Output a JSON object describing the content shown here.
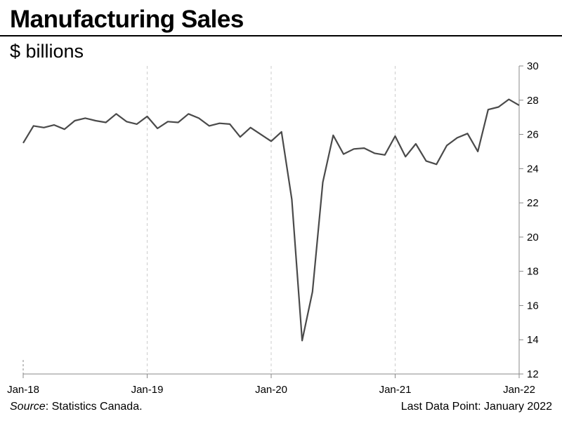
{
  "header": {
    "title": "Manufacturing Sales",
    "subtitle": "$ billions"
  },
  "footer": {
    "source_label": "Source",
    "source_rest": ": Statistics Canada.",
    "last_data_point": "Last Data Point: January 2022"
  },
  "colors": {
    "line": "#4a4a4a",
    "grid": "#cccccc",
    "axis": "#888888"
  },
  "chart_data": {
    "type": "line",
    "title": "Manufacturing Sales",
    "ylabel": "$ billions",
    "xlabel": "",
    "ylim": [
      12,
      30
    ],
    "yticks": [
      12,
      14,
      16,
      18,
      20,
      22,
      24,
      26,
      28,
      30
    ],
    "x_tick_labels": [
      "Jan-18",
      "Jan-19",
      "Jan-20",
      "Jan-21",
      "Jan-22"
    ],
    "x_tick_indices": [
      0,
      12,
      24,
      36,
      48
    ],
    "grid": "vertical dashed at year ticks",
    "series": [
      {
        "name": "Manufacturing Sales",
        "x": [
          "2018-01",
          "2018-02",
          "2018-03",
          "2018-04",
          "2018-05",
          "2018-06",
          "2018-07",
          "2018-08",
          "2018-09",
          "2018-10",
          "2018-11",
          "2018-12",
          "2019-01",
          "2019-02",
          "2019-03",
          "2019-04",
          "2019-05",
          "2019-06",
          "2019-07",
          "2019-08",
          "2019-09",
          "2019-10",
          "2019-11",
          "2019-12",
          "2020-01",
          "2020-02",
          "2020-03",
          "2020-04",
          "2020-05",
          "2020-06",
          "2020-07",
          "2020-08",
          "2020-09",
          "2020-10",
          "2020-11",
          "2020-12",
          "2021-01",
          "2021-02",
          "2021-03",
          "2021-04",
          "2021-05",
          "2021-06",
          "2021-07",
          "2021-08",
          "2021-09",
          "2021-10",
          "2021-11",
          "2021-12",
          "2022-01"
        ],
        "values": [
          25.5,
          26.5,
          26.4,
          26.55,
          26.3,
          26.8,
          26.95,
          26.8,
          26.7,
          27.2,
          26.75,
          26.6,
          27.05,
          26.35,
          26.75,
          26.7,
          27.2,
          26.95,
          26.5,
          26.65,
          26.6,
          25.85,
          26.4,
          26.0,
          25.6,
          26.15,
          22.2,
          13.95,
          16.8,
          23.2,
          25.95,
          24.85,
          25.15,
          25.2,
          24.9,
          24.8,
          25.9,
          24.7,
          25.45,
          24.45,
          24.25,
          25.35,
          25.8,
          26.05,
          25.0,
          27.45,
          27.6,
          28.05,
          27.7
        ]
      }
    ]
  }
}
